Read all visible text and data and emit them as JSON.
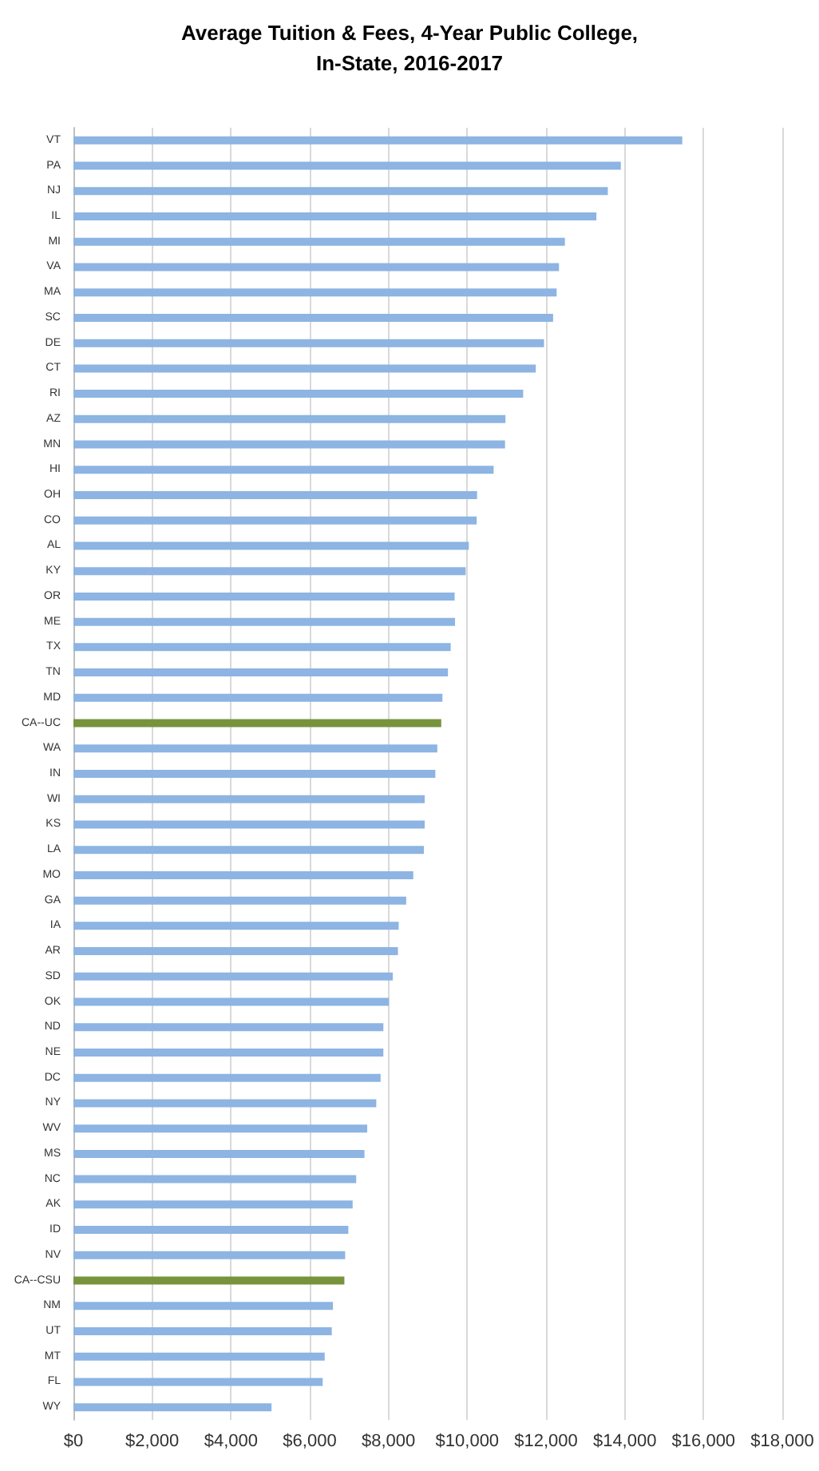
{
  "chart_data": {
    "type": "bar",
    "orientation": "horizontal",
    "title": "Average Tuition & Fees, 4-Year Public College,\nIn-State, 2016-2017",
    "categories": [
      "VT",
      "PA",
      "NJ",
      "IL",
      "MI",
      "VA",
      "MA",
      "SC",
      "DE",
      "CT",
      "RI",
      "AZ",
      "MN",
      "HI",
      "OH",
      "CO",
      "AL",
      "KY",
      "OR",
      "ME",
      "TX",
      "TN",
      "MD",
      "CA--UC",
      "WA",
      "IN",
      "WI",
      "KS",
      "LA",
      "MO",
      "GA",
      "IA",
      "AR",
      "SD",
      "OK",
      "ND",
      "NE",
      "DC",
      "NY",
      "WV",
      "MS",
      "NC",
      "AK",
      "ID",
      "NV",
      "CA--CSU",
      "NM",
      "UT",
      "MT",
      "FL",
      "WY"
    ],
    "values": [
      15460,
      13900,
      13570,
      13280,
      12480,
      12330,
      12270,
      12180,
      11950,
      11740,
      11420,
      10970,
      10960,
      10670,
      10250,
      10240,
      10040,
      9960,
      9680,
      9690,
      9580,
      9510,
      9370,
      9340,
      9240,
      9190,
      8920,
      8920,
      8900,
      8630,
      8450,
      8260,
      8240,
      8110,
      8010,
      7870,
      7870,
      7800,
      7690,
      7460,
      7390,
      7180,
      7090,
      6980,
      6900,
      6880,
      6590,
      6560,
      6380,
      6330,
      5030
    ],
    "colors": [
      "#8db4e2",
      "#8db4e2",
      "#8db4e2",
      "#8db4e2",
      "#8db4e2",
      "#8db4e2",
      "#8db4e2",
      "#8db4e2",
      "#8db4e2",
      "#8db4e2",
      "#8db4e2",
      "#8db4e2",
      "#8db4e2",
      "#8db4e2",
      "#8db4e2",
      "#8db4e2",
      "#8db4e2",
      "#8db4e2",
      "#8db4e2",
      "#8db4e2",
      "#8db4e2",
      "#8db4e2",
      "#8db4e2",
      "#77933c",
      "#8db4e2",
      "#8db4e2",
      "#8db4e2",
      "#8db4e2",
      "#8db4e2",
      "#8db4e2",
      "#8db4e2",
      "#8db4e2",
      "#8db4e2",
      "#8db4e2",
      "#8db4e2",
      "#8db4e2",
      "#8db4e2",
      "#8db4e2",
      "#8db4e2",
      "#8db4e2",
      "#8db4e2",
      "#8db4e2",
      "#8db4e2",
      "#8db4e2",
      "#8db4e2",
      "#77933c",
      "#8db4e2",
      "#8db4e2",
      "#8db4e2",
      "#8db4e2",
      "#8db4e2"
    ],
    "xlim": [
      0,
      18000
    ],
    "xticks": [
      {
        "value": 0,
        "label": "$0"
      },
      {
        "value": 2000,
        "label": "$2,000"
      },
      {
        "value": 4000,
        "label": "$4,000"
      },
      {
        "value": 6000,
        "label": "$6,000"
      },
      {
        "value": 8000,
        "label": "$8,000"
      },
      {
        "value": 10000,
        "label": "$10,000"
      },
      {
        "value": 12000,
        "label": "$12,000"
      },
      {
        "value": 14000,
        "label": "$14,000"
      },
      {
        "value": 16000,
        "label": "$16,000"
      },
      {
        "value": 18000,
        "label": "$18,000"
      }
    ],
    "grid": "x"
  }
}
